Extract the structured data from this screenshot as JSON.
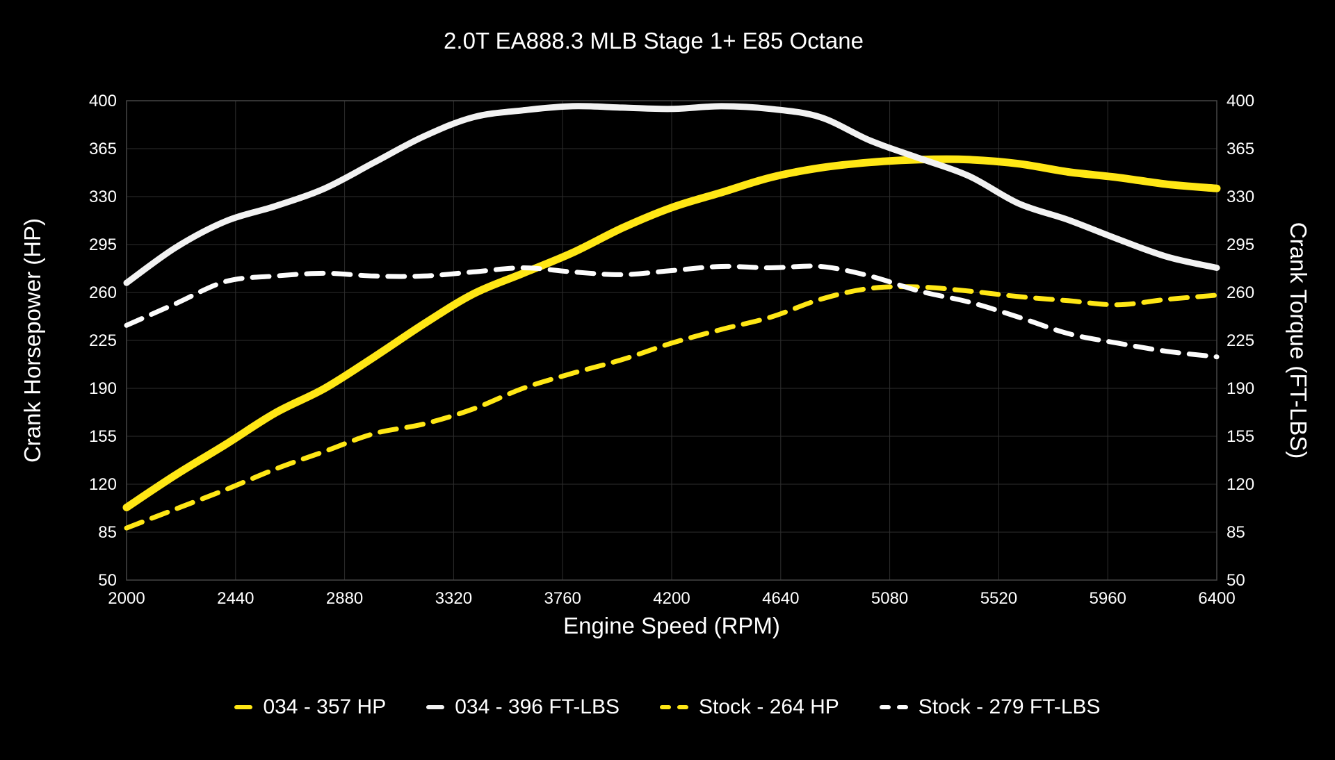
{
  "chart_data": {
    "type": "line",
    "title": "2.0T EA888.3 MLB Stage 1+ E85 Octane",
    "xlabel": "Engine Speed (RPM)",
    "ylabel_left": "Crank Horsepower (HP)",
    "ylabel_right": "Crank Torque (FT-LBS)",
    "x_ticks": [
      2000,
      2440,
      2880,
      3320,
      3760,
      4200,
      4640,
      5080,
      5520,
      5960,
      6400
    ],
    "y_ticks": [
      400,
      365,
      330,
      295,
      260,
      225,
      190,
      155,
      120,
      85,
      50
    ],
    "xlim": [
      2000,
      6400
    ],
    "ylim": [
      50,
      400
    ],
    "grid": true,
    "legend_position": "bottom",
    "background_color": "#000000",
    "gridline_color": "#2e2e2e",
    "x": [
      2000,
      2200,
      2400,
      2600,
      2800,
      3000,
      3200,
      3400,
      3600,
      3800,
      4000,
      4200,
      4400,
      4600,
      4800,
      5000,
      5200,
      5400,
      5600,
      5800,
      6000,
      6200,
      6400
    ],
    "series": [
      {
        "key": "034-hp",
        "label": "034 - 357 HP",
        "color": "#ffe715",
        "style": "solid",
        "width": 11,
        "peak": 357,
        "values": [
          103,
          127,
          149,
          172,
          190,
          213,
          237,
          259,
          274,
          289,
          307,
          322,
          333,
          344,
          351,
          355,
          357,
          357,
          354,
          348,
          344,
          339,
          336
        ]
      },
      {
        "key": "034-ftlbs",
        "label": "034 - 396 FT-LBS",
        "color": "#f2f2f2",
        "style": "solid",
        "width": 9,
        "peak": 396,
        "values": [
          267,
          293,
          312,
          323,
          336,
          355,
          374,
          388,
          393,
          396,
          395,
          394,
          396,
          394,
          388,
          371,
          358,
          345,
          325,
          313,
          299,
          286,
          278
        ]
      },
      {
        "key": "stock-hp",
        "label": "Stock - 264 HP",
        "color": "#ffe715",
        "style": "dashed",
        "width": 7,
        "peak": 264,
        "values": [
          88,
          102,
          116,
          131,
          144,
          157,
          164,
          175,
          190,
          201,
          211,
          223,
          233,
          242,
          255,
          263,
          264,
          261,
          257,
          254,
          251,
          255,
          258
        ]
      },
      {
        "key": "stock-ftlbs",
        "label": "Stock - 279 FT-LBS",
        "color": "#fcfcfc",
        "style": "dashed",
        "width": 7,
        "peak": 279,
        "values": [
          236,
          252,
          268,
          272,
          274,
          272,
          272,
          275,
          278,
          275,
          273,
          276,
          279,
          278,
          279,
          272,
          261,
          253,
          242,
          230,
          223,
          217,
          213
        ]
      }
    ]
  }
}
